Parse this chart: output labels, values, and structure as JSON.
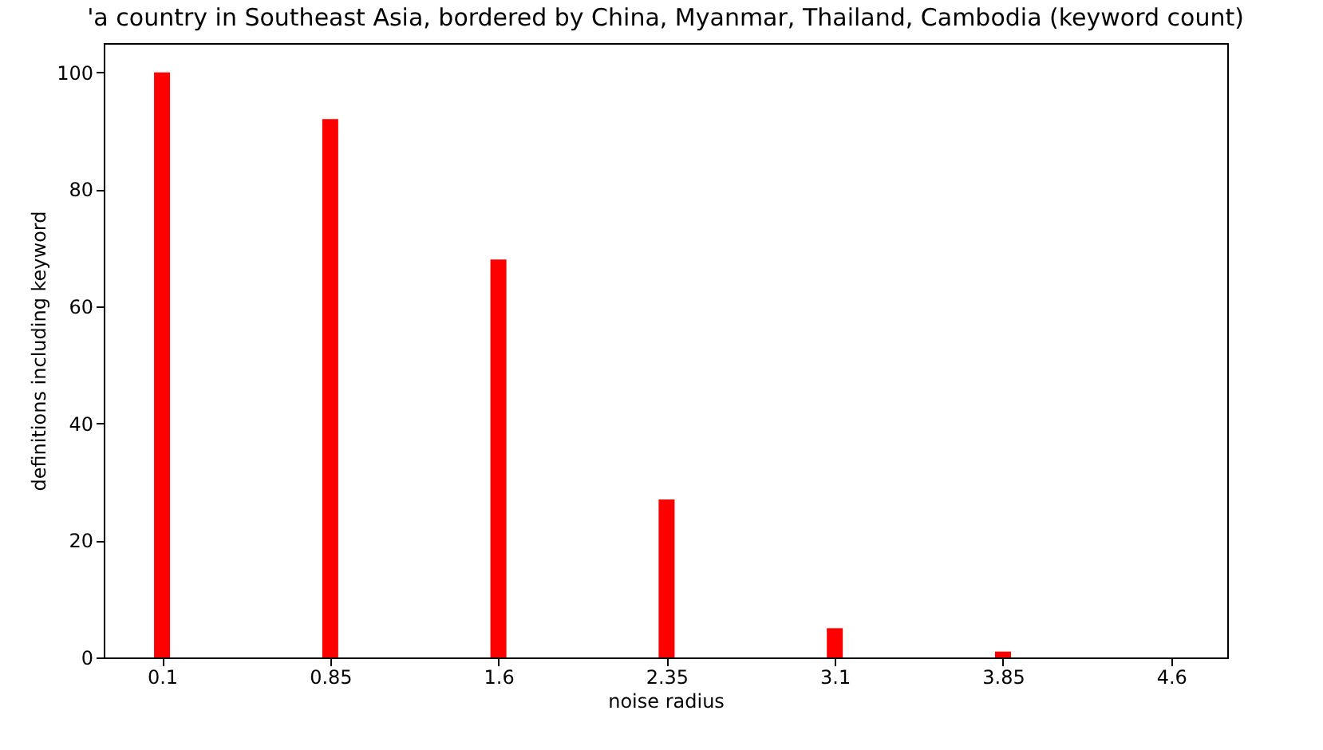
{
  "chart_data": {
    "type": "bar",
    "title": "'a country in Southeast Asia, bordered by China, Myanmar, Thailand, Cambodia (keyword count)",
    "xlabel": "noise radius",
    "ylabel": "definitions including keyword",
    "x": [
      0.1,
      0.85,
      1.6,
      2.35,
      3.1,
      3.85,
      4.6
    ],
    "values": [
      100,
      92,
      68,
      27,
      5,
      1,
      0
    ],
    "color": "#ff0000",
    "xlim": [
      -0.16,
      4.85
    ],
    "xticks": [
      0.1,
      0.85,
      1.6,
      2.35,
      3.1,
      3.85,
      4.6
    ],
    "ylim": [
      0,
      105
    ],
    "yticks": [
      0,
      20,
      40,
      60,
      80,
      100
    ],
    "grid": false
  }
}
